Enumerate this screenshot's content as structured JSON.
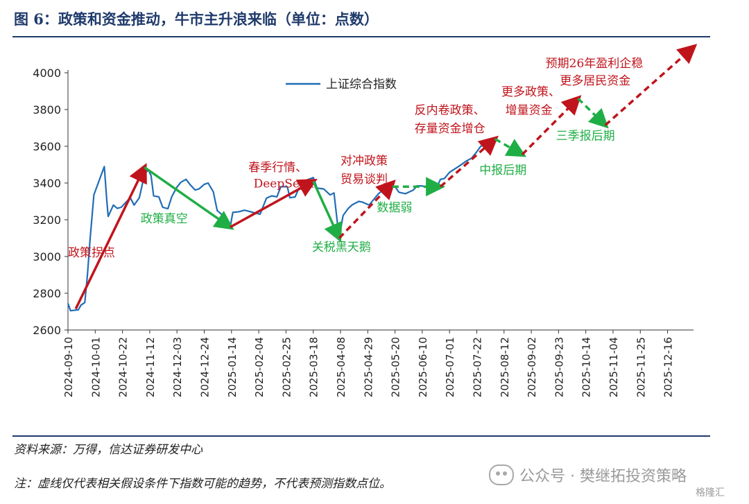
{
  "title": "图 6：政策和资金推动，牛市主升浪来临（单位：点数）",
  "source": "资料来源：万得，信达证券研发中心",
  "note": "注：虚线仅代表相关假设条件下指数可能的趋势，不代表预测指数点位。",
  "watermark": {
    "text": "公众号 · 樊继拓投资策略",
    "corner": "格隆汇",
    "icon": "wechat-icon"
  },
  "chart_data": {
    "type": "line",
    "ylim": [
      2600,
      4000
    ],
    "yticks": [
      2600,
      2800,
      3000,
      3200,
      3400,
      3600,
      3800,
      4000
    ],
    "xticks": [
      "2024-09-10",
      "2024-10-01",
      "2024-10-22",
      "2024-11-12",
      "2024-12-03",
      "2024-12-24",
      "2025-01-14",
      "2025-02-04",
      "2025-02-25",
      "2025-03-18",
      "2025-04-08",
      "2025-04-29",
      "2025-05-20",
      "2025-06-10",
      "2025-07-01",
      "2025-07-22",
      "2025-08-12",
      "2025-09-02",
      "2025-09-23",
      "2025-10-14",
      "2025-11-04",
      "2025-11-25",
      "2025-12-16"
    ],
    "xlim": [
      "2024-09-10",
      "2026-01-05"
    ],
    "legend": {
      "placement": "top-center",
      "label": "上证综合指数"
    },
    "colors": {
      "line": "#1f6db5",
      "up": "#c0141c",
      "down": "#1fae45",
      "axis": "#333333"
    },
    "series": [
      {
        "name": "上证综合指数",
        "x": [
          "2024-09-10",
          "2024-09-12",
          "2024-09-18",
          "2024-09-20",
          "2024-09-23",
          "2024-09-25",
          "2024-09-27",
          "2024-09-30",
          "2024-10-08",
          "2024-10-10",
          "2024-10-11",
          "2024-10-15",
          "2024-10-18",
          "2024-10-21",
          "2024-10-24",
          "2024-10-28",
          "2024-10-31",
          "2024-11-04",
          "2024-11-06",
          "2024-11-08",
          "2024-11-11",
          "2024-11-13",
          "2024-11-15",
          "2024-11-19",
          "2024-11-22",
          "2024-11-26",
          "2024-11-29",
          "2024-12-03",
          "2024-12-06",
          "2024-12-10",
          "2024-12-13",
          "2024-12-17",
          "2024-12-20",
          "2024-12-24",
          "2024-12-27",
          "2024-12-31",
          "2025-01-03",
          "2025-01-07",
          "2025-01-10",
          "2025-01-13",
          "2025-01-15",
          "2025-01-20",
          "2025-01-24",
          "2025-02-05",
          "2025-02-10",
          "2025-02-14",
          "2025-02-18",
          "2025-02-21",
          "2025-02-26",
          "2025-02-28",
          "2025-03-04",
          "2025-03-07",
          "2025-03-11",
          "2025-03-14",
          "2025-03-18",
          "2025-03-21",
          "2025-03-26",
          "2025-03-31",
          "2025-04-03",
          "2025-04-07",
          "2025-04-08",
          "2025-04-10",
          "2025-04-14",
          "2025-04-17",
          "2025-04-22",
          "2025-04-25",
          "2025-04-30",
          "2025-05-07",
          "2025-05-12",
          "2025-05-15",
          "2025-05-20",
          "2025-05-23",
          "2025-05-28",
          "2025-06-03",
          "2025-06-06",
          "2025-06-10",
          "2025-06-13",
          "2025-06-16",
          "2025-06-20",
          "2025-06-24",
          "2025-06-27",
          "2025-07-01",
          "2025-07-04",
          "2025-07-09",
          "2025-07-14",
          "2025-07-18",
          "2025-07-22",
          "2025-07-25",
          "2025-07-28"
        ],
        "values": [
          2745,
          2705,
          2710,
          2735,
          2750,
          2900,
          3090,
          3336,
          3490,
          3300,
          3218,
          3280,
          3262,
          3268,
          3290,
          3320,
          3280,
          3320,
          3384,
          3452,
          3470,
          3440,
          3330,
          3325,
          3268,
          3260,
          3326,
          3378,
          3404,
          3420,
          3392,
          3362,
          3368,
          3393,
          3400,
          3352,
          3250,
          3226,
          3180,
          3160,
          3240,
          3244,
          3252,
          3230,
          3318,
          3330,
          3325,
          3380,
          3380,
          3320,
          3324,
          3372,
          3360,
          3419,
          3430,
          3372,
          3368,
          3335,
          3346,
          3096,
          3145,
          3223,
          3262,
          3281,
          3300,
          3296,
          3280,
          3340,
          3370,
          3380,
          3380,
          3350,
          3342,
          3361,
          3385,
          3384,
          3378,
          3388,
          3359,
          3420,
          3424,
          3458,
          3472,
          3495,
          3520,
          3535,
          3570,
          3600,
          3610
        ]
      }
    ],
    "arrows": [
      {
        "from": [
          "2024-09-16",
          2715
        ],
        "to": [
          "2024-11-08",
          3485
        ],
        "style": "solid",
        "color": "up"
      },
      {
        "from": [
          "2024-11-08",
          3485
        ],
        "to": [
          "2025-01-13",
          3160
        ],
        "style": "solid",
        "color": "down"
      },
      {
        "from": [
          "2025-01-13",
          3160
        ],
        "to": [
          "2025-03-18",
          3410
        ],
        "style": "solid",
        "color": "up"
      },
      {
        "from": [
          "2025-03-18",
          3410
        ],
        "to": [
          "2025-04-07",
          3100
        ],
        "style": "solid",
        "color": "down"
      },
      {
        "from": [
          "2025-04-07",
          3100
        ],
        "to": [
          "2025-05-18",
          3400
        ],
        "style": "dashed",
        "color": "up"
      },
      {
        "from": [
          "2025-05-18",
          3380
        ],
        "to": [
          "2025-06-24",
          3380
        ],
        "style": "dashed",
        "color": "down"
      },
      {
        "from": [
          "2025-06-24",
          3380
        ],
        "to": [
          "2025-08-05",
          3640
        ],
        "style": "dashed",
        "color": "up"
      },
      {
        "from": [
          "2025-08-05",
          3640
        ],
        "to": [
          "2025-08-26",
          3555
        ],
        "style": "dashed",
        "color": "down"
      },
      {
        "from": [
          "2025-08-26",
          3555
        ],
        "to": [
          "2025-10-08",
          3860
        ],
        "style": "dashed",
        "color": "up"
      },
      {
        "from": [
          "2025-10-08",
          3860
        ],
        "to": [
          "2025-10-29",
          3715
        ],
        "style": "dashed",
        "color": "down"
      },
      {
        "from": [
          "2025-10-29",
          3715
        ],
        "to": [
          "2026-01-05",
          4140
        ],
        "style": "dashed",
        "color": "up"
      }
    ],
    "annotations": [
      {
        "text": "政策拐点",
        "x": "2024-09-10",
        "y": 3000,
        "color": "up"
      },
      {
        "text": "政策真空",
        "x": "2024-11-05",
        "y": 3185,
        "color": "down"
      },
      {
        "text": "春季行情、",
        "x": "2025-01-27",
        "y": 3465,
        "color": "up"
      },
      {
        "text": "DeepSeek",
        "x": "2025-01-31",
        "y": 3375,
        "color": "up"
      },
      {
        "text": "关税黑天鹅",
        "x": "2025-03-17",
        "y": 3030,
        "color": "down"
      },
      {
        "text": "对冲政策",
        "x": "2025-04-08",
        "y": 3500,
        "color": "up"
      },
      {
        "text": "贸易谈判",
        "x": "2025-04-08",
        "y": 3400,
        "color": "up"
      },
      {
        "text": "数据弱",
        "x": "2025-05-06",
        "y": 3245,
        "color": "down"
      },
      {
        "text": "反内卷政策、",
        "x": "2025-06-04",
        "y": 3775,
        "color": "up"
      },
      {
        "text": "存量资金增仓",
        "x": "2025-06-04",
        "y": 3675,
        "color": "up"
      },
      {
        "text": "中报后期",
        "x": "2025-07-24",
        "y": 3450,
        "color": "down"
      },
      {
        "text": "更多政策、",
        "x": "2025-08-10",
        "y": 3875,
        "color": "up"
      },
      {
        "text": "增量资金",
        "x": "2025-08-13",
        "y": 3775,
        "color": "up"
      },
      {
        "text": "三季报后期",
        "x": "2025-09-21",
        "y": 3635,
        "color": "down"
      },
      {
        "text": "预期26年盈利企稳",
        "x": "2025-09-13",
        "y": 4030,
        "color": "up"
      },
      {
        "text": "更多居民资金",
        "x": "2025-09-24",
        "y": 3935,
        "color": "up"
      }
    ]
  }
}
